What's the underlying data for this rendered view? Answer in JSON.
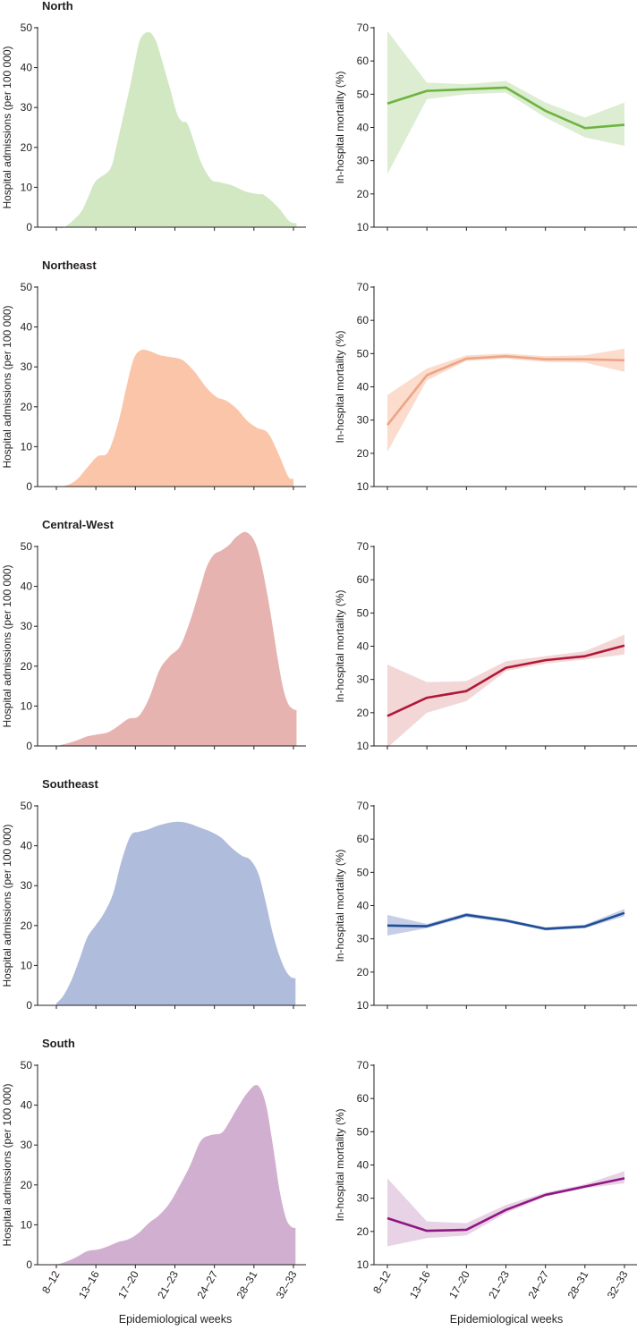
{
  "chart_data": {
    "type": "area",
    "x_categories": [
      "8–12",
      "13–16",
      "17–20",
      "21–23",
      "24–27",
      "28–31",
      "32–33"
    ],
    "xlabel": "Epidemiological weeks",
    "admissions_axis": {
      "ylabel": "Hospital admissions (per 100 000)",
      "ylim": [
        0,
        50
      ],
      "ticks": [
        0,
        10,
        20,
        30,
        40,
        50
      ]
    },
    "mortality_axis": {
      "ylabel": "In-hospital mortality (%)",
      "ylim": [
        10,
        70
      ],
      "ticks": [
        10,
        20,
        30,
        40,
        50,
        60,
        70
      ]
    },
    "regions": [
      {
        "name": "North",
        "fill_color": "#d1e8c3",
        "line_color": "#6cb33f",
        "band_color": "#dcedd1",
        "admissions": {
          "weeks": [
            10,
            10.8,
            12.3,
            13,
            13.8,
            15.2,
            15.8,
            16.2,
            17.2,
            17.7,
            18.2,
            19,
            19.6,
            20,
            21,
            21.7,
            22.2,
            22.8,
            24,
            25,
            25.8,
            27,
            28.3,
            29.5,
            30.2,
            31.5,
            32.6,
            33.3
          ],
          "values": [
            0,
            0,
            3.5,
            7,
            11.5,
            14.5,
            20,
            24.5,
            36,
            42.5,
            47.5,
            48.9,
            47,
            44,
            35,
            28.5,
            26.5,
            25.5,
            16.5,
            12,
            11.3,
            10.5,
            9,
            8.3,
            8,
            5,
            1.5,
            1
          ]
        },
        "mortality": {
          "mean": [
            47.2,
            51,
            51.5,
            52,
            45,
            39.8,
            40.8
          ],
          "lower": [
            26,
            48.5,
            50,
            50.5,
            43,
            37,
            34.5
          ],
          "upper": [
            69,
            53.5,
            53,
            54,
            47.5,
            43,
            47.5
          ]
        }
      },
      {
        "name": "Northeast",
        "fill_color": "#fbc5aa",
        "line_color": "#eea586",
        "band_color": "#fbdccd",
        "admissions": {
          "weeks": [
            10,
            11,
            12,
            13,
            14,
            15,
            16,
            16.8,
            17.5,
            18.2,
            19,
            20,
            21,
            22,
            22.6,
            23.5,
            24.5,
            25.5,
            26.5,
            27.5,
            28.5,
            29.5,
            30.5,
            31.5,
            32.5,
            33
          ],
          "values": [
            0,
            0.3,
            1.8,
            4.8,
            7.6,
            8.6,
            16,
            25,
            32,
            34.2,
            34,
            33,
            32.5,
            32,
            31,
            28.5,
            25,
            22.5,
            21.5,
            19.5,
            16.5,
            14.7,
            13.5,
            8.5,
            2.5,
            2
          ]
        },
        "mortality": {
          "mean": [
            28.5,
            43.5,
            48.5,
            49.2,
            48.3,
            48.3,
            48
          ],
          "lower": [
            20.5,
            42,
            47.8,
            48.5,
            47.5,
            47.3,
            44.5
          ],
          "upper": [
            37.5,
            45.5,
            49.5,
            50,
            49.2,
            49.5,
            51.5
          ]
        }
      },
      {
        "name": "Central-West",
        "fill_color": "#e6b3b0",
        "line_color": "#b0183a",
        "band_color": "#f3d7d6",
        "admissions": {
          "weeks": [
            10,
            11,
            12,
            13,
            14,
            15,
            16,
            17,
            18,
            19,
            20,
            21,
            22,
            23,
            24,
            24.6,
            25.3,
            26,
            26.8,
            27.5,
            28.5,
            29.5,
            30.5,
            31.5,
            32,
            32.5,
            33,
            33.3
          ],
          "values": [
            0,
            0.6,
            1.4,
            2.4,
            2.9,
            3.4,
            5,
            6.8,
            7.5,
            12,
            19,
            22.5,
            25,
            31.5,
            40,
            45,
            48,
            49,
            50.5,
            52.5,
            53.5,
            49.5,
            37.5,
            21.5,
            14.5,
            10.5,
            9.2,
            9
          ]
        },
        "mortality": {
          "mean": [
            19,
            24.5,
            26.5,
            33.5,
            35.8,
            37,
            40.2
          ],
          "lower": [
            9.5,
            20,
            23.5,
            32.5,
            34.8,
            36,
            37.5
          ],
          "upper": [
            34.5,
            29.2,
            29.5,
            35.5,
            37,
            38.5,
            43.5
          ]
        }
      },
      {
        "name": "Southeast",
        "fill_color": "#b0bcdc",
        "line_color": "#1f4e97",
        "band_color": "#c6cfe7",
        "admissions": {
          "weeks": [
            10,
            10.7,
            11.5,
            12.3,
            13,
            13.8,
            14.6,
            15.5,
            16.3,
            17.2,
            18,
            18.8,
            19.8,
            21,
            22,
            23,
            24,
            25,
            26,
            27,
            28,
            28.8,
            29.6,
            30.3,
            31,
            31.7,
            32.3,
            32.8,
            33.2
          ],
          "values": [
            0.5,
            2.5,
            6.5,
            12,
            17,
            20,
            23,
            28,
            36,
            42.5,
            43.5,
            44,
            45,
            45.8,
            46,
            45.5,
            44.5,
            43.5,
            42,
            39.5,
            37.5,
            36.5,
            33,
            26,
            18,
            12,
            8.5,
            7,
            6.8
          ]
        },
        "mortality": {
          "mean": [
            34,
            33.8,
            37.2,
            35.5,
            33,
            33.7,
            37.8
          ],
          "lower": [
            31,
            33.2,
            36.5,
            35,
            32.5,
            33.2,
            36.8
          ],
          "upper": [
            37.2,
            34.5,
            37.8,
            36,
            33.5,
            34.3,
            39
          ]
        }
      },
      {
        "name": "South",
        "fill_color": "#d1afd0",
        "line_color": "#8f1783",
        "band_color": "#e8d3e6",
        "admissions": {
          "weeks": [
            10,
            11,
            12,
            13,
            14,
            15,
            16,
            17,
            18,
            19,
            20,
            21,
            22,
            23,
            24,
            25,
            26,
            26.6,
            27.5,
            28.5,
            29.5,
            30.3,
            31,
            31.7,
            32.3,
            32.8,
            33.2
          ],
          "values": [
            0,
            0.8,
            2,
            3.4,
            3.8,
            4.6,
            5.7,
            6.4,
            8,
            10.5,
            12.5,
            15.5,
            20,
            25,
            31,
            32.5,
            33,
            35,
            39,
            43,
            45,
            40.5,
            30,
            18,
            11.5,
            9.5,
            9.2
          ]
        },
        "mortality": {
          "mean": [
            24,
            20.2,
            20.5,
            26.5,
            31,
            33.5,
            36
          ],
          "lower": [
            15.5,
            18,
            18.8,
            25.5,
            30.5,
            33,
            34.5
          ],
          "upper": [
            36,
            23,
            22.5,
            28,
            31.7,
            34.2,
            38.2
          ]
        }
      }
    ]
  }
}
